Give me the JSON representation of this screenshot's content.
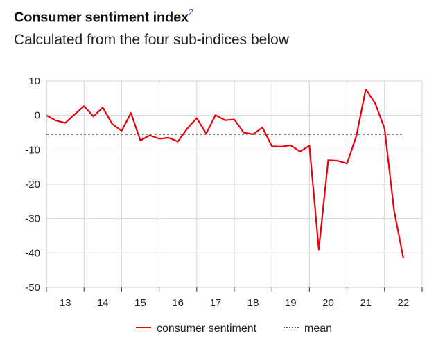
{
  "title": "Consumer sentiment index",
  "title_footnote": "2",
  "subtitle": "Calculated from the four sub-indices below",
  "legend": {
    "series_label": "consumer sentiment",
    "mean_label": "mean"
  },
  "colors": {
    "series": "#e8000b",
    "mean": "#555555",
    "grid": "#d4d4d4",
    "footnote": "#3a63c9"
  },
  "chart_data": {
    "type": "line",
    "title": "Consumer sentiment index",
    "subtitle": "Calculated from the four sub-indices below",
    "xlabel": "",
    "ylabel": "",
    "ylim": [
      -50,
      10
    ],
    "yticks": [
      10,
      0,
      -10,
      -20,
      -30,
      -40,
      -50
    ],
    "xlim": [
      2012.5,
      2022.5
    ],
    "xtick_labels": [
      "13",
      "14",
      "15",
      "16",
      "17",
      "18",
      "19",
      "20",
      "21",
      "22"
    ],
    "xtick_positions": [
      2013,
      2014,
      2015,
      2016,
      2017,
      2018,
      2019,
      2020,
      2021,
      2022
    ],
    "grid": true,
    "legend_position": "bottom",
    "series": [
      {
        "name": "consumer sentiment",
        "x": [
          2012.5,
          2012.75,
          2013.0,
          2013.25,
          2013.5,
          2013.75,
          2014.0,
          2014.25,
          2014.5,
          2014.75,
          2015.0,
          2015.25,
          2015.5,
          2015.75,
          2016.0,
          2016.25,
          2016.5,
          2016.75,
          2017.0,
          2017.25,
          2017.5,
          2017.75,
          2018.0,
          2018.25,
          2018.5,
          2018.75,
          2019.0,
          2019.25,
          2019.5,
          2019.75,
          2020.0,
          2020.25,
          2020.5,
          2020.75,
          2021.0,
          2021.25,
          2021.5,
          2021.75,
          2022.0
        ],
        "values": [
          0.0,
          -1.5,
          -2.2,
          0.3,
          2.7,
          -0.3,
          2.3,
          -2.5,
          -4.5,
          0.7,
          -7.3,
          -5.8,
          -6.8,
          -6.5,
          -7.6,
          -3.8,
          -0.8,
          -5.3,
          0.1,
          -1.4,
          -1.2,
          -5.0,
          -5.5,
          -3.5,
          -9.0,
          -9.1,
          -8.7,
          -10.5,
          -8.8,
          -39.0,
          -13.0,
          -13.2,
          -14.0,
          -6.0,
          7.6,
          3.5,
          -3.8,
          -27.5,
          -41.5
        ]
      },
      {
        "name": "mean",
        "x": [
          2012.5,
          2022.0
        ],
        "values": [
          -5.5,
          -5.5
        ],
        "style": "dashed"
      }
    ]
  }
}
